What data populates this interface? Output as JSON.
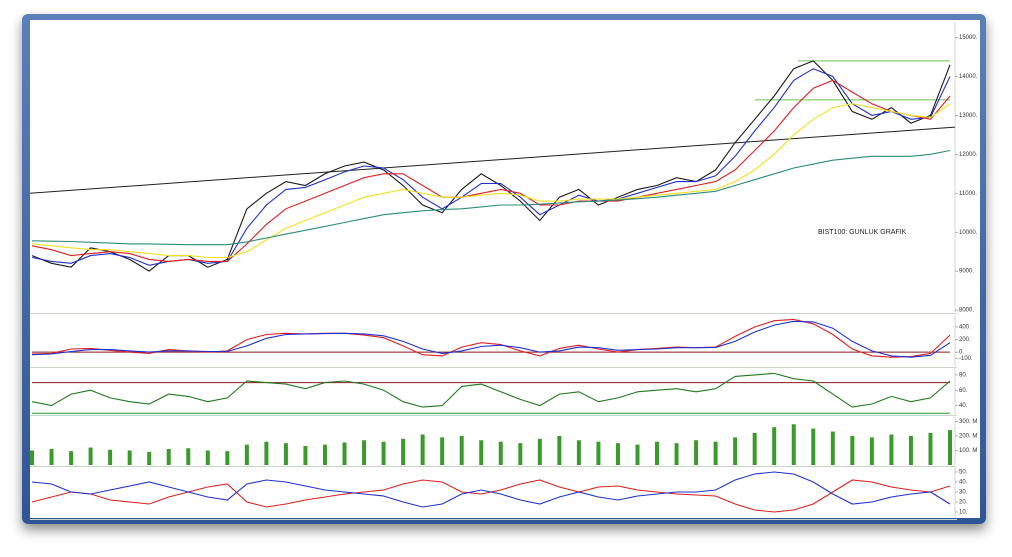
{
  "chart_data": [
    {
      "type": "line",
      "annotation": "BIST100: GUNLUK GRAFIK",
      "ylim": [
        7950,
        15400
      ],
      "yticks": [
        {
          "value": 15000,
          "label": "15000."
        },
        {
          "value": 14000,
          "label": "14000."
        },
        {
          "value": 13000,
          "label": "13000."
        },
        {
          "value": 12000,
          "label": "12000."
        },
        {
          "value": 11000,
          "label": "11000."
        },
        {
          "value": 10000,
          "label": "10000."
        },
        {
          "value": 9000,
          "label": "9000."
        },
        {
          "value": 8000,
          "label": "8000."
        }
      ],
      "trendline": {
        "values": [
          11000,
          12700
        ],
        "color": "#222222"
      },
      "hlines": [
        {
          "value": 14400,
          "color": "#6cc24a"
        },
        {
          "value": 13400,
          "color": "#6cc24a"
        }
      ],
      "series": [
        {
          "color": "#1a1a1a",
          "values": [
            9400,
            9200,
            9100,
            9600,
            9500,
            9300,
            9000,
            9400,
            9400,
            9100,
            9300,
            10600,
            11000,
            11300,
            11200,
            11500,
            11700,
            11800,
            11600,
            11200,
            10700,
            10500,
            11100,
            11500,
            11200,
            10800,
            10300,
            10900,
            11100,
            10700,
            10900,
            11100,
            11200,
            11400,
            11300,
            11600,
            12300,
            12900,
            13500,
            14200,
            14400,
            13900,
            13100,
            12900,
            13200,
            12800,
            13000,
            14300
          ]
        },
        {
          "color": "#2030d0",
          "values": [
            9350,
            9250,
            9200,
            9400,
            9450,
            9350,
            9150,
            9250,
            9300,
            9200,
            9250,
            10100,
            10700,
            11100,
            11150,
            11350,
            11550,
            11700,
            11650,
            11350,
            10900,
            10600,
            10900,
            11250,
            11250,
            10900,
            10450,
            10700,
            10950,
            10800,
            10850,
            11000,
            11150,
            11300,
            11300,
            11450,
            11950,
            12600,
            13200,
            13900,
            14200,
            14000,
            13300,
            13000,
            13100,
            12900,
            12950,
            14000
          ]
        },
        {
          "color": "#e02020",
          "values": [
            9650,
            9550,
            9400,
            9450,
            9500,
            9450,
            9300,
            9250,
            9300,
            9250,
            9250,
            9700,
            10200,
            10600,
            10800,
            11000,
            11200,
            11400,
            11500,
            11500,
            11200,
            10900,
            10900,
            11000,
            11100,
            11000,
            10700,
            10700,
            10800,
            10800,
            10800,
            10900,
            11000,
            11100,
            11200,
            11300,
            11600,
            12100,
            12600,
            13200,
            13700,
            13900,
            13600,
            13300,
            13100,
            13000,
            12900,
            13500
          ]
        },
        {
          "color": "#f2e020",
          "values": [
            9700,
            9650,
            9600,
            9550,
            9550,
            9500,
            9450,
            9400,
            9400,
            9350,
            9350,
            9500,
            9800,
            10100,
            10300,
            10500,
            10700,
            10900,
            11000,
            11100,
            11000,
            10900,
            10900,
            10950,
            11000,
            10950,
            10800,
            10800,
            10850,
            10850,
            10850,
            10900,
            10950,
            11000,
            11050,
            11100,
            11300,
            11600,
            12000,
            12500,
            12900,
            13200,
            13300,
            13200,
            13100,
            13000,
            12950,
            13300
          ]
        },
        {
          "color": "#2e8b7a",
          "values": [
            9780,
            9770,
            9760,
            9740,
            9720,
            9700,
            9700,
            9690,
            9680,
            9680,
            9680,
            9750,
            9850,
            9950,
            10050,
            10150,
            10250,
            10350,
            10450,
            10500,
            10550,
            10580,
            10600,
            10650,
            10700,
            10700,
            10720,
            10750,
            10780,
            10800,
            10830,
            10860,
            10900,
            10950,
            11000,
            11050,
            11200,
            11350,
            11500,
            11650,
            11750,
            11850,
            11900,
            11950,
            11950,
            11950,
            12000,
            12100
          ]
        }
      ]
    },
    {
      "type": "line",
      "ylim": [
        -220,
        590
      ],
      "yticks": [
        {
          "value": 400,
          "label": "400."
        },
        {
          "value": 200,
          "label": "200."
        },
        {
          "value": 0,
          "label": "0."
        },
        {
          "value": -100,
          "label": "-100."
        }
      ],
      "hlines": [
        {
          "value": 0,
          "color": "#8b1a1a"
        }
      ],
      "series": [
        {
          "color": "#e02020",
          "values": [
            -30,
            -20,
            50,
            60,
            30,
            0,
            -20,
            40,
            20,
            0,
            20,
            200,
            280,
            300,
            290,
            300,
            300,
            270,
            230,
            100,
            -40,
            -60,
            80,
            150,
            120,
            20,
            -60,
            60,
            110,
            50,
            0,
            40,
            60,
            80,
            70,
            80,
            250,
            400,
            500,
            520,
            450,
            280,
            50,
            -60,
            -80,
            -70,
            -20,
            270
          ]
        },
        {
          "color": "#2030d0",
          "values": [
            -40,
            -30,
            10,
            40,
            40,
            20,
            0,
            20,
            20,
            10,
            10,
            100,
            220,
            280,
            290,
            295,
            300,
            290,
            260,
            170,
            50,
            -20,
            20,
            90,
            110,
            70,
            0,
            20,
            80,
            70,
            30,
            40,
            50,
            70,
            70,
            75,
            170,
            320,
            430,
            490,
            480,
            380,
            170,
            20,
            -60,
            -80,
            -50,
            150
          ]
        }
      ]
    },
    {
      "type": "line",
      "ylim": [
        29,
        89
      ],
      "yticks": [
        {
          "value": 80,
          "label": "80."
        },
        {
          "value": 60,
          "label": "60."
        },
        {
          "value": 40,
          "label": "40."
        }
      ],
      "hlines": [
        {
          "value": 70,
          "color": "#8b1a1a"
        },
        {
          "value": 30,
          "color": "#2a9a2a"
        }
      ],
      "series": [
        {
          "color": "#1f7a1f",
          "values": [
            45,
            40,
            55,
            60,
            50,
            45,
            42,
            55,
            52,
            45,
            50,
            72,
            70,
            68,
            62,
            70,
            72,
            68,
            60,
            45,
            38,
            40,
            65,
            68,
            58,
            48,
            40,
            55,
            58,
            45,
            50,
            58,
            60,
            62,
            58,
            62,
            78,
            80,
            82,
            75,
            72,
            55,
            38,
            42,
            52,
            45,
            50,
            72
          ]
        }
      ]
    },
    {
      "type": "bar",
      "ylim": [
        0,
        330
      ],
      "yticks": [
        {
          "value": 300,
          "label": "300. M"
        },
        {
          "value": 200,
          "label": "200. M"
        },
        {
          "value": 100,
          "label": "100. M"
        }
      ],
      "series": [
        {
          "color": "#3a9a2a",
          "values": [
            100,
            110,
            95,
            120,
            105,
            100,
            90,
            110,
            115,
            100,
            95,
            140,
            160,
            150,
            130,
            140,
            155,
            170,
            160,
            180,
            210,
            190,
            200,
            170,
            160,
            150,
            180,
            200,
            170,
            160,
            150,
            140,
            160,
            150,
            170,
            160,
            190,
            220,
            260,
            280,
            250,
            230,
            200,
            190,
            210,
            200,
            220,
            240
          ]
        }
      ]
    },
    {
      "type": "line",
      "ylim": [
        4,
        55
      ],
      "yticks": [
        {
          "value": 50,
          "label": "50."
        },
        {
          "value": 40,
          "label": "40."
        },
        {
          "value": 30,
          "label": "30."
        },
        {
          "value": 20,
          "label": "20."
        },
        {
          "value": 10,
          "label": "10."
        }
      ],
      "series": [
        {
          "color": "#e02020",
          "values": [
            20,
            25,
            30,
            28,
            22,
            20,
            18,
            25,
            30,
            35,
            38,
            20,
            15,
            18,
            22,
            25,
            28,
            30,
            32,
            38,
            42,
            40,
            30,
            28,
            32,
            38,
            42,
            35,
            30,
            35,
            36,
            32,
            30,
            28,
            27,
            26,
            18,
            12,
            10,
            12,
            18,
            30,
            42,
            40,
            35,
            32,
            30,
            36
          ]
        },
        {
          "color": "#2030d0",
          "values": [
            40,
            38,
            30,
            28,
            32,
            36,
            40,
            35,
            30,
            25,
            22,
            38,
            42,
            40,
            36,
            32,
            30,
            28,
            26,
            20,
            15,
            18,
            28,
            32,
            28,
            22,
            18,
            25,
            30,
            25,
            22,
            26,
            28,
            30,
            30,
            32,
            42,
            48,
            50,
            48,
            40,
            28,
            18,
            20,
            25,
            28,
            30,
            18
          ]
        }
      ]
    }
  ]
}
